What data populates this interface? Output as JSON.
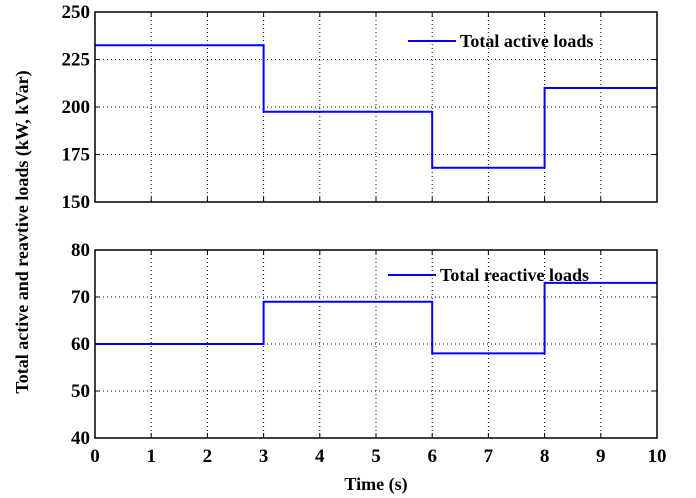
{
  "shared": {
    "ylabel": "Total active and reavtive loads (kW, kVar)",
    "xlabel": "Time (s)"
  },
  "chart_data": [
    {
      "type": "line",
      "x": [
        0,
        3,
        3,
        6,
        6,
        8,
        8,
        10
      ],
      "series": [
        {
          "name": "Total active loads",
          "color": "#0000ff",
          "values": [
            232.5,
            232.5,
            197.5,
            197.5,
            168,
            168,
            210,
            210
          ]
        }
      ],
      "xlim": [
        0,
        10
      ],
      "ylim": [
        150,
        250
      ],
      "yticks": [
        150,
        175,
        200,
        225,
        250
      ],
      "xticks": [
        0,
        1,
        2,
        3,
        4,
        5,
        6,
        7,
        8,
        9,
        10
      ],
      "show_xtick_labels": false,
      "grid": true,
      "legend": "top-right"
    },
    {
      "type": "line",
      "x": [
        0,
        3,
        3,
        6,
        6,
        8,
        8,
        10
      ],
      "series": [
        {
          "name": "Total reactive loads",
          "color": "#0000ff",
          "values": [
            60,
            60,
            69,
            69,
            58,
            58,
            73,
            73
          ]
        }
      ],
      "xlim": [
        0,
        10
      ],
      "ylim": [
        40,
        80
      ],
      "yticks": [
        40,
        50,
        60,
        70,
        80
      ],
      "xticks": [
        0,
        1,
        2,
        3,
        4,
        5,
        6,
        7,
        8,
        9,
        10
      ],
      "show_xtick_labels": true,
      "grid": true,
      "legend": "top-right"
    }
  ]
}
